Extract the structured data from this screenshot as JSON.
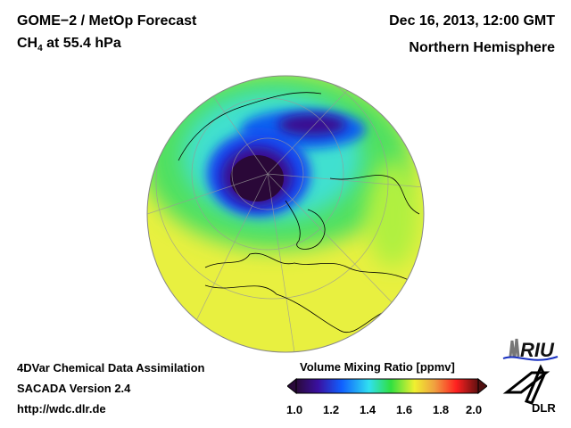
{
  "header": {
    "title": "GOME−2 / MetOp Forecast",
    "species": "CH",
    "species_sub": "4",
    "level": " at 55.4 hPa",
    "datetime": "Dec 16, 2013, 12:00 GMT",
    "region": "Northern Hemisphere"
  },
  "footer": {
    "line1": "4DVar Chemical Data Assimilation",
    "line2": "SACADA Version 2.4",
    "url": "http://wdc.dlr.de"
  },
  "colorbar": {
    "title": "Volume Mixing Ratio [ppmv]",
    "ticks": [
      "1.0",
      "1.2",
      "1.4",
      "1.6",
      "1.8",
      "2.0"
    ],
    "colors": [
      "#2a0a3a",
      "#3a10a0",
      "#1060ff",
      "#30e0f0",
      "#30e040",
      "#f0f030",
      "#f0a040",
      "#ff2020",
      "#601010"
    ]
  },
  "logos": {
    "riu": "RIU",
    "dlr": "DLR"
  }
}
